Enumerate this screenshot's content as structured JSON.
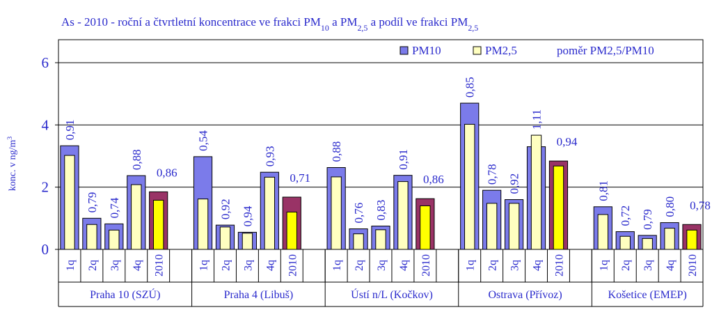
{
  "chart_data": {
    "type": "bar",
    "title": [
      "As - 2010 - roční a čtvrtletní koncentrace ve frakci PM",
      "10",
      " a PM",
      "2,5",
      " a podíl ve frakci PM",
      "2,5"
    ],
    "y_label": [
      "konc. v ng/m",
      "3"
    ],
    "categories": [
      "1q",
      "2q",
      "3q",
      "4q",
      "2010",
      null,
      "1q",
      "2q",
      "3q",
      "4q",
      "2010",
      null,
      "1q",
      "2q",
      "3q",
      "4q",
      "2010",
      null,
      "1q",
      "2q",
      "3q",
      "4q",
      "2010",
      null,
      "1q",
      "2q",
      "3q",
      "4q",
      "2010"
    ],
    "groups": [
      "Praha 10 (SZÚ)",
      "Praha 4 (Libuš)",
      "Ústí n/L (Kočkov)",
      "Ostrava (Přívoz)",
      "Košetice (EMEP)"
    ],
    "series": [
      {
        "name": "PM10",
        "color": "#7b7bea",
        "colors": [
          "#7b7bea",
          "#7b7bea",
          "#7b7bea",
          "#7b7bea",
          "#993366",
          null,
          "#7b7bea",
          "#7b7bea",
          "#7b7bea",
          "#7b7bea",
          "#993366",
          null,
          "#7b7bea",
          "#7b7bea",
          "#7b7bea",
          "#7b7bea",
          "#993366",
          null,
          "#7b7bea",
          "#7b7bea",
          "#7b7bea",
          "#7b7bea",
          "#993366",
          null,
          "#7b7bea",
          "#7b7bea",
          "#7b7bea",
          "#7b7bea",
          "#993366"
        ],
        "values": [
          3.33,
          1.0,
          0.82,
          2.37,
          1.85,
          null,
          2.98,
          0.78,
          0.55,
          2.48,
          1.68,
          null,
          2.63,
          0.66,
          0.75,
          2.38,
          1.63,
          null,
          4.7,
          1.9,
          1.6,
          3.3,
          2.84,
          null,
          1.37,
          0.57,
          0.45,
          0.86,
          0.8
        ]
      },
      {
        "name": "PM2,5",
        "color": "#ffffc0",
        "colors": [
          "#ffffc0",
          "#ffffc0",
          "#ffffc0",
          "#ffffc0",
          "#ffff00",
          null,
          "#ffffc0",
          "#ffffc0",
          "#ffffc0",
          "#ffffc0",
          "#ffff00",
          null,
          "#ffffc0",
          "#ffffc0",
          "#ffffc0",
          "#ffffc0",
          "#ffff00",
          null,
          "#ffffc0",
          "#ffffc0",
          "#ffffc0",
          "#ffffc0",
          "#ffff00",
          null,
          "#ffffc0",
          "#ffffc0",
          "#ffffc0",
          "#ffffc0",
          "#ffff00"
        ],
        "values": [
          3.02,
          0.8,
          0.62,
          2.08,
          1.58,
          null,
          1.62,
          0.72,
          0.52,
          2.32,
          1.2,
          null,
          2.33,
          0.5,
          0.63,
          2.18,
          1.4,
          null,
          4.02,
          1.48,
          1.48,
          3.67,
          2.68,
          null,
          1.12,
          0.42,
          0.35,
          0.68,
          0.62
        ]
      },
      {
        "name": "poměr PM2,5/PM10",
        "color": "#2a2acc",
        "values": [
          0.91,
          0.79,
          0.74,
          0.88,
          0.86,
          null,
          0.54,
          0.92,
          0.94,
          0.93,
          0.71,
          null,
          0.88,
          0.76,
          0.83,
          0.91,
          0.86,
          null,
          0.85,
          0.78,
          0.92,
          1.11,
          0.94,
          null,
          0.81,
          0.72,
          0.79,
          0.8,
          0.78
        ],
        "value_labels": [
          "0,91",
          "0,79",
          "0,74",
          "0,88",
          "0,86",
          null,
          "0,54",
          "0,92",
          "0,94",
          "0,93",
          "0,71",
          null,
          "0,88",
          "0,76",
          "0,83",
          "0,91",
          "0,86",
          null,
          "0,85",
          "0,78",
          "0,92",
          "1,11",
          "0,94",
          null,
          "0,81",
          "0,72",
          "0,79",
          "0,80",
          "0,78"
        ]
      }
    ],
    "ylim": [
      0,
      6
    ],
    "yticks": [
      0,
      2,
      4,
      6
    ],
    "grid": true
  }
}
